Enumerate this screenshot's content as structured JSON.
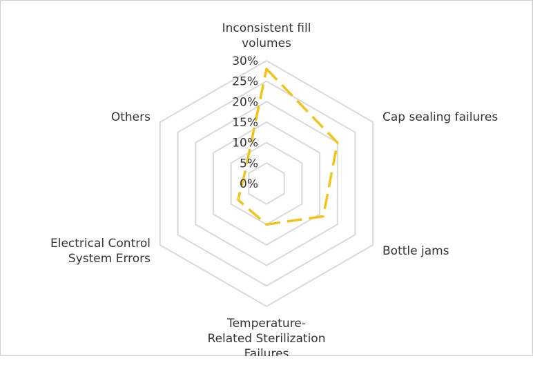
{
  "chart_data": {
    "type": "radar",
    "title": "",
    "categories": [
      [
        "Inconsistent fill",
        "volumes"
      ],
      [
        "Cap sealing failures"
      ],
      [
        "Bottle jams"
      ],
      [
        "Temperature-",
        "Related Sterilization",
        "Failures"
      ],
      [
        "Electrical Control",
        "System Errors"
      ],
      [
        "Others"
      ]
    ],
    "series": [
      {
        "values": [
          28,
          20,
          16,
          10,
          8,
          6
        ]
      }
    ],
    "r_ticks": [
      "0%",
      "5%",
      "10%",
      "15%",
      "20%",
      "25%",
      "30%"
    ],
    "r_range": [
      0,
      30
    ],
    "grid": true,
    "legend": "none",
    "colors": {
      "series": "#f2c318",
      "grid": "#d9d9d9",
      "text": "#333333"
    }
  }
}
